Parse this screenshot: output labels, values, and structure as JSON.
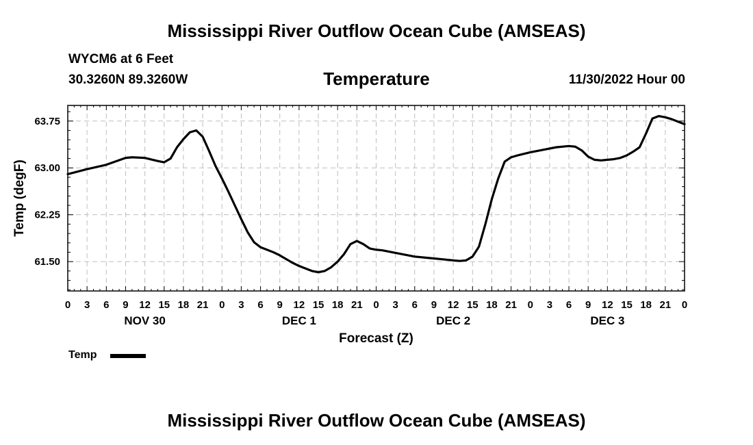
{
  "header": {
    "title": "Mississippi River Outflow Ocean Cube (AMSEAS)",
    "station": "WYCM6 at 6 Feet",
    "coords": "30.3260N  89.3260W",
    "chart_title": "Temperature",
    "datetime": "11/30/2022 Hour 00"
  },
  "footer": {
    "title": "Mississippi River Outflow Ocean Cube (AMSEAS)"
  },
  "legend": {
    "label": "Temp",
    "color": "#000000"
  },
  "chart_data": {
    "type": "line",
    "title": "Temperature",
    "xlabel": "Forecast (Z)",
    "ylabel": "Temp (degF)",
    "x_unit": "forecast hours",
    "xlim": [
      0,
      96
    ],
    "ylim": [
      61.03,
      64.0
    ],
    "yticks": [
      61.5,
      62.25,
      63.0,
      63.75
    ],
    "ytick_labels": [
      "61.50",
      "62.25",
      "63.00",
      "63.75"
    ],
    "xtick_hours": [
      0,
      3,
      6,
      9,
      12,
      15,
      18,
      21,
      24,
      27,
      30,
      33,
      36,
      39,
      42,
      45,
      48,
      51,
      54,
      57,
      60,
      63,
      66,
      69,
      72,
      75,
      78,
      81,
      84,
      87,
      90,
      93,
      96
    ],
    "xtick_labels": [
      "0",
      "3",
      "6",
      "9",
      "12",
      "15",
      "18",
      "21",
      "0",
      "3",
      "6",
      "9",
      "12",
      "15",
      "18",
      "21",
      "0",
      "3",
      "6",
      "9",
      "12",
      "15",
      "18",
      "21",
      "0",
      "3",
      "6",
      "9",
      "12",
      "15",
      "18",
      "21",
      "0"
    ],
    "day_labels": [
      {
        "hour": 12,
        "label": "NOV 30"
      },
      {
        "hour": 36,
        "label": "DEC 1"
      },
      {
        "hour": 60,
        "label": "DEC 2"
      },
      {
        "hour": 84,
        "label": "DEC 3"
      }
    ],
    "grid": true,
    "series": [
      {
        "name": "Temp",
        "color": "#000000",
        "x": [
          0,
          3,
          6,
          9,
          10,
          12,
          14,
          15,
          16,
          17,
          18,
          19,
          20,
          21,
          22,
          23,
          24,
          25,
          26,
          27,
          28,
          29,
          30,
          31,
          32,
          33,
          34,
          35,
          36,
          37,
          38,
          39,
          40,
          41,
          42,
          43,
          44,
          45,
          46,
          47,
          48,
          49,
          50,
          52,
          54,
          56,
          58,
          60,
          61,
          62,
          63,
          64,
          65,
          66,
          67,
          68,
          69,
          70,
          72,
          74,
          76,
          78,
          79,
          80,
          81,
          82,
          83,
          84,
          85,
          86,
          87,
          88,
          89,
          90,
          91,
          92,
          93,
          94,
          95,
          96
        ],
        "y": [
          62.9,
          62.98,
          63.05,
          63.16,
          63.17,
          63.16,
          63.11,
          63.09,
          63.15,
          63.33,
          63.46,
          63.57,
          63.6,
          63.5,
          63.27,
          63.03,
          62.83,
          62.62,
          62.4,
          62.18,
          61.97,
          61.81,
          61.73,
          61.69,
          61.65,
          61.6,
          61.54,
          61.48,
          61.43,
          61.39,
          61.35,
          61.33,
          61.35,
          61.41,
          61.5,
          61.62,
          61.78,
          61.83,
          61.78,
          61.71,
          61.69,
          61.68,
          61.66,
          61.62,
          61.58,
          61.56,
          61.54,
          61.52,
          61.51,
          61.52,
          61.58,
          61.74,
          62.1,
          62.5,
          62.83,
          63.1,
          63.17,
          63.2,
          63.25,
          63.29,
          63.33,
          63.35,
          63.34,
          63.28,
          63.18,
          63.13,
          63.12,
          63.13,
          63.14,
          63.16,
          63.2,
          63.26,
          63.33,
          63.55,
          63.79,
          63.83,
          63.81,
          63.78,
          63.74,
          63.7
        ]
      }
    ]
  }
}
